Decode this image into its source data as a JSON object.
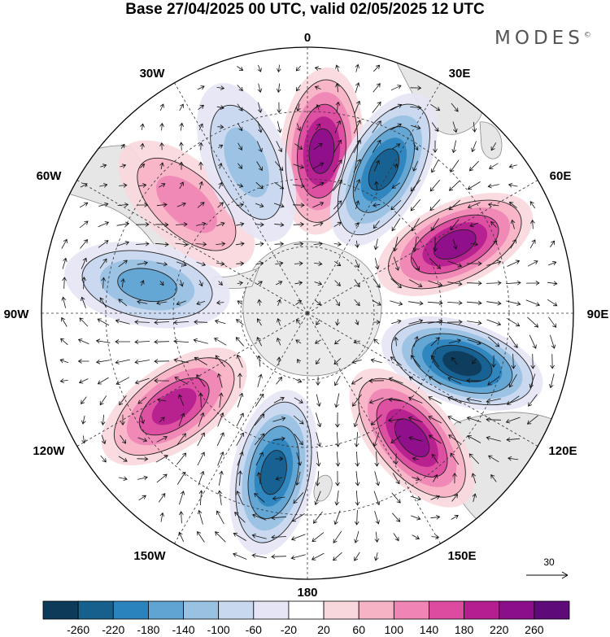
{
  "header": {
    "title": "Base 27/04/2025 00 UTC, valid 02/05/2025 12 UTC",
    "brand": "MODES",
    "brand_mark": "©"
  },
  "map": {
    "projection": "south-polar-stereographic",
    "longitude_labels": {
      "lon_0": "0",
      "lon_30e": "30E",
      "lon_60e": "60E",
      "lon_90e": "90E",
      "lon_120e": "120E",
      "lon_150e": "150E",
      "lon_180": "180",
      "lon_150w": "150W",
      "lon_120w": "120W",
      "lon_90w": "90W",
      "lon_60w": "60W",
      "lon_30w": "30W"
    },
    "reference_vector_label": "30",
    "anomaly_centers": [
      {
        "longitude": 5,
        "sign": "positive",
        "value": 240
      },
      {
        "longitude": 28,
        "sign": "negative",
        "value": -220
      },
      {
        "longitude": 65,
        "sign": "positive",
        "value": 220
      },
      {
        "longitude": 108,
        "sign": "negative",
        "value": -260
      },
      {
        "longitude": 140,
        "sign": "positive",
        "value": 230
      },
      {
        "longitude": -168,
        "sign": "negative",
        "value": -230
      },
      {
        "longitude": -125,
        "sign": "positive",
        "value": 210
      },
      {
        "longitude": -80,
        "sign": "negative",
        "value": -140
      },
      {
        "longitude": -48,
        "sign": "positive",
        "value": 100
      },
      {
        "longitude": -22,
        "sign": "negative",
        "value": -110
      }
    ]
  },
  "colorbar": {
    "labels": [
      "-260",
      "-220",
      "-180",
      "-140",
      "-100",
      "-60",
      "-20",
      "20",
      "60",
      "100",
      "140",
      "180",
      "220",
      "260"
    ],
    "colors": [
      "#0e3a5a",
      "#16608e",
      "#2b83bd",
      "#5fa4d2",
      "#98c1e2",
      "#c8d8ef",
      "#e6e5f5",
      "#ffffff",
      "#f9d8dd",
      "#f7b3c6",
      "#ef85b4",
      "#dc4b9f",
      "#b41e8e",
      "#8b0f8a",
      "#5e0a78"
    ]
  }
}
